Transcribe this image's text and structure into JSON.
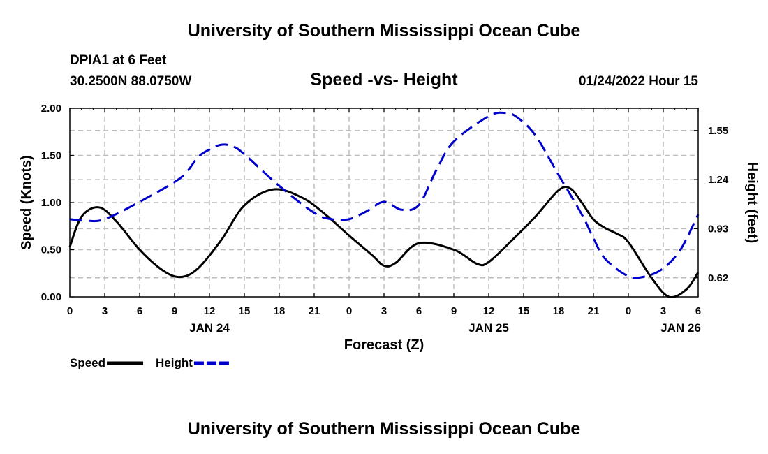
{
  "header": {
    "title": "University of Southern Mississippi Ocean Cube",
    "footer_title": "University of Southern Mississippi Ocean Cube",
    "station": "DPIA1 at 6 Feet",
    "coordinates": "30.2500N  88.0750W",
    "timestamp": "01/24/2022 Hour 15"
  },
  "chart_data": {
    "type": "line",
    "title": "Speed -vs- Height",
    "xlabel": "Forecast (Z)",
    "ylabel": "Speed (Knots)",
    "y2label": "Height (feet)",
    "xlim": [
      0,
      54
    ],
    "ylim": [
      0,
      2.0
    ],
    "y2lim": [
      0.5,
      1.69
    ],
    "x_ticks": [
      0,
      3,
      6,
      9,
      12,
      15,
      18,
      21,
      24,
      27,
      30,
      33,
      36,
      39,
      42,
      45,
      48,
      51,
      54
    ],
    "x_tick_labels": [
      "0",
      "3",
      "6",
      "9",
      "12",
      "15",
      "18",
      "21",
      "0",
      "3",
      "6",
      "9",
      "12",
      "15",
      "18",
      "21",
      "0",
      "3",
      "6"
    ],
    "y_ticks": [
      0,
      0.5,
      1.0,
      1.5,
      2.0
    ],
    "y_tick_labels": [
      "0.00",
      "0.50",
      "1.00",
      "1.50",
      "2.00"
    ],
    "y2_ticks": [
      0.62,
      0.93,
      1.24,
      1.55
    ],
    "y2_tick_labels": [
      "0.62",
      "0.93",
      "1.24",
      "1.55"
    ],
    "date_labels": [
      {
        "x": 12,
        "label": "JAN 24"
      },
      {
        "x": 36,
        "label": "JAN 25"
      },
      {
        "x": 52.5,
        "label": "JAN 26"
      }
    ],
    "series": [
      {
        "name": "Speed",
        "axis": "left",
        "color": "#000000",
        "dash": "solid",
        "x": [
          0,
          1,
          2.5,
          4,
          6,
          8,
          9.5,
          11,
          13,
          15,
          17.5,
          20,
          22,
          24,
          26,
          27,
          28,
          30,
          33,
          35,
          36,
          38,
          40,
          42,
          43,
          44,
          45,
          46,
          47,
          48,
          50,
          51.5,
          53,
          54
        ],
        "values": [
          0.53,
          0.85,
          0.95,
          0.8,
          0.5,
          0.28,
          0.21,
          0.3,
          0.6,
          0.97,
          1.14,
          1.05,
          0.87,
          0.65,
          0.44,
          0.33,
          0.36,
          0.57,
          0.5,
          0.35,
          0.37,
          0.6,
          0.85,
          1.13,
          1.15,
          1.0,
          0.82,
          0.73,
          0.67,
          0.58,
          0.2,
          0.0,
          0.08,
          0.26
        ]
      },
      {
        "name": "Height",
        "axis": "right",
        "color": "#0000cc",
        "dash": "dashed",
        "x": [
          0,
          1.5,
          3,
          6,
          9.5,
          11,
          12,
          13,
          14,
          15,
          18,
          21,
          22.5,
          24,
          25.5,
          27,
          28.5,
          30,
          31.5,
          33,
          36,
          37.5,
          38.5,
          40,
          42,
          44,
          45,
          46,
          48,
          49.5,
          51,
          52.5,
          54
        ],
        "values": [
          0.99,
          0.98,
          0.99,
          1.1,
          1.25,
          1.38,
          1.43,
          1.46,
          1.45,
          1.4,
          1.2,
          1.03,
          0.99,
          0.99,
          1.04,
          1.1,
          1.05,
          1.08,
          1.3,
          1.48,
          1.64,
          1.66,
          1.63,
          1.52,
          1.27,
          1.02,
          0.87,
          0.74,
          0.63,
          0.63,
          0.68,
          0.8,
          1.02
        ]
      }
    ],
    "legend": [
      {
        "label": "Speed",
        "color": "#000000",
        "dash": "solid"
      },
      {
        "label": "Height",
        "color": "#0000cc",
        "dash": "dashed"
      }
    ],
    "legend_position": "bottom-left",
    "grid": true
  }
}
